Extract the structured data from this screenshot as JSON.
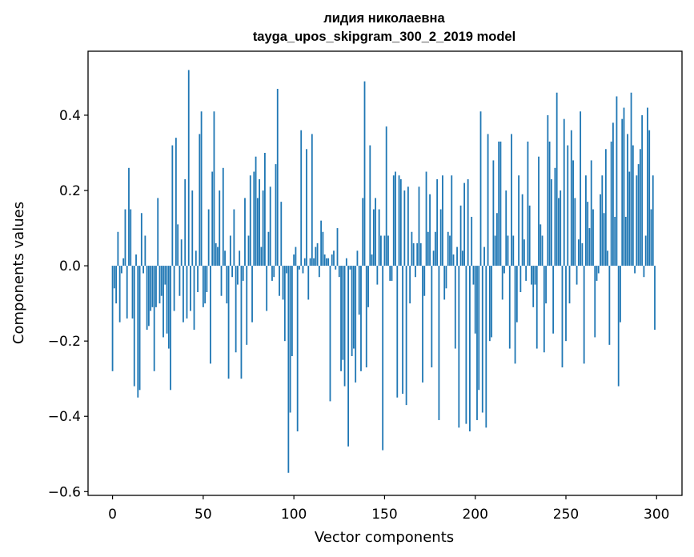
{
  "chart_data": {
    "type": "bar",
    "title": "лидия николаевна",
    "subtitle": "tayga_upos_skipgram_300_2_2019 model",
    "xlabel": "Vector components",
    "ylabel": "Components values",
    "xlim": [
      -13.5,
      314
    ],
    "ylim": [
      -0.61,
      0.57
    ],
    "xticks": [
      0,
      50,
      100,
      150,
      200,
      250,
      300
    ],
    "xtick_labels": [
      "0",
      "50",
      "100",
      "150",
      "200",
      "250",
      "300"
    ],
    "yticks": [
      -0.6,
      -0.4,
      -0.2,
      0.0,
      0.2,
      0.4
    ],
    "ytick_labels": [
      "−0.6",
      "−0.4",
      "−0.2",
      "0.0",
      "0.2",
      "0.4"
    ],
    "grid": false,
    "color": "#1f77b4",
    "x": [
      0,
      1,
      2,
      3,
      4,
      5,
      6,
      7,
      8,
      9,
      10,
      11,
      12,
      13,
      14,
      15,
      16,
      17,
      18,
      19,
      20,
      21,
      22,
      23,
      24,
      25,
      26,
      27,
      28,
      29,
      30,
      31,
      32,
      33,
      34,
      35,
      36,
      37,
      38,
      39,
      40,
      41,
      42,
      43,
      44,
      45,
      46,
      47,
      48,
      49,
      50,
      51,
      52,
      53,
      54,
      55,
      56,
      57,
      58,
      59,
      60,
      61,
      62,
      63,
      64,
      65,
      66,
      67,
      68,
      69,
      70,
      71,
      72,
      73,
      74,
      75,
      76,
      77,
      78,
      79,
      80,
      81,
      82,
      83,
      84,
      85,
      86,
      87,
      88,
      89,
      90,
      91,
      92,
      93,
      94,
      95,
      96,
      97,
      98,
      99,
      100,
      101,
      102,
      103,
      104,
      105,
      106,
      107,
      108,
      109,
      110,
      111,
      112,
      113,
      114,
      115,
      116,
      117,
      118,
      119,
      120,
      121,
      122,
      123,
      124,
      125,
      126,
      127,
      128,
      129,
      130,
      131,
      132,
      133,
      134,
      135,
      136,
      137,
      138,
      139,
      140,
      141,
      142,
      143,
      144,
      145,
      146,
      147,
      148,
      149,
      150,
      151,
      152,
      153,
      154,
      155,
      156,
      157,
      158,
      159,
      160,
      161,
      162,
      163,
      164,
      165,
      166,
      167,
      168,
      169,
      170,
      171,
      172,
      173,
      174,
      175,
      176,
      177,
      178,
      179,
      180,
      181,
      182,
      183,
      184,
      185,
      186,
      187,
      188,
      189,
      190,
      191,
      192,
      193,
      194,
      195,
      196,
      197,
      198,
      199,
      200,
      201,
      202,
      203,
      204,
      205,
      206,
      207,
      208,
      209,
      210,
      211,
      212,
      213,
      214,
      215,
      216,
      217,
      218,
      219,
      220,
      221,
      222,
      223,
      224,
      225,
      226,
      227,
      228,
      229,
      230,
      231,
      232,
      233,
      234,
      235,
      236,
      237,
      238,
      239,
      240,
      241,
      242,
      243,
      244,
      245,
      246,
      247,
      248,
      249,
      250,
      251,
      252,
      253,
      254,
      255,
      256,
      257,
      258,
      259,
      260,
      261,
      262,
      263,
      264,
      265,
      266,
      267,
      268,
      269,
      270,
      271,
      272,
      273,
      274,
      275,
      276,
      277,
      278,
      279,
      280,
      281,
      282,
      283,
      284,
      285,
      286,
      287,
      288,
      289,
      290,
      291,
      292,
      293,
      294,
      295,
      296,
      297,
      298,
      299
    ],
    "values": [
      -0.28,
      -0.06,
      -0.1,
      0.09,
      -0.15,
      -0.02,
      0.02,
      0.15,
      -0.14,
      0.26,
      0.15,
      -0.14,
      -0.32,
      0.03,
      -0.35,
      -0.33,
      0.14,
      -0.02,
      0.08,
      -0.17,
      -0.16,
      -0.12,
      -0.11,
      -0.28,
      -0.11,
      0.18,
      -0.1,
      -0.08,
      -0.19,
      -0.05,
      -0.18,
      -0.22,
      -0.33,
      0.32,
      -0.12,
      0.34,
      0.11,
      -0.08,
      0.07,
      -0.15,
      0.23,
      -0.14,
      0.52,
      -0.12,
      0.2,
      -0.17,
      0.04,
      -0.07,
      0.35,
      0.41,
      -0.11,
      -0.1,
      -0.07,
      0.15,
      -0.26,
      0.25,
      0.41,
      0.06,
      0.05,
      0.2,
      -0.08,
      0.26,
      0.04,
      -0.1,
      -0.3,
      0.08,
      -0.03,
      0.15,
      -0.23,
      -0.05,
      0.04,
      -0.3,
      -0.04,
      0.18,
      -0.21,
      0.08,
      0.24,
      -0.15,
      0.25,
      0.29,
      0.18,
      0.23,
      0.05,
      0.2,
      0.3,
      -0.12,
      0.09,
      0.21,
      -0.04,
      -0.03,
      0.27,
      0.47,
      -0.08,
      0.17,
      -0.09,
      -0.2,
      -0.02,
      -0.55,
      -0.39,
      -0.24,
      0.03,
      0.05,
      -0.44,
      -0.01,
      0.36,
      -0.02,
      0.02,
      0.31,
      -0.09,
      0.02,
      0.35,
      0.02,
      0.05,
      0.06,
      -0.03,
      0.12,
      0.09,
      0.03,
      0.02,
      0.02,
      -0.36,
      0.03,
      0.04,
      -0.01,
      0.1,
      -0.03,
      -0.28,
      -0.25,
      -0.32,
      0.02,
      -0.48,
      -0.01,
      -0.24,
      -0.22,
      -0.31,
      0.04,
      -0.13,
      -0.28,
      0.18,
      0.49,
      -0.27,
      -0.11,
      0.32,
      0.03,
      0.15,
      0.18,
      -0.05,
      0.15,
      0.08,
      -0.49,
      0.08,
      0.37,
      0.08,
      -0.04,
      -0.04,
      0.24,
      0.25,
      -0.35,
      0.24,
      0.23,
      -0.34,
      0.2,
      -0.37,
      0.21,
      -0.1,
      0.09,
      0.06,
      -0.03,
      0.06,
      0.21,
      0.06,
      -0.31,
      -0.08,
      0.25,
      0.09,
      0.19,
      -0.27,
      0.04,
      0.09,
      0.23,
      -0.41,
      0.15,
      0.24,
      -0.09,
      -0.06,
      0.09,
      0.08,
      0.24,
      0.03,
      -0.22,
      0.05,
      -0.43,
      0.16,
      0.04,
      0.22,
      -0.42,
      0.23,
      -0.44,
      0.13,
      -0.05,
      -0.18,
      -0.41,
      -0.33,
      0.41,
      -0.39,
      0.05,
      -0.43,
      0.35,
      -0.2,
      -0.19,
      0.28,
      0.08,
      0.14,
      0.33,
      0.33,
      -0.09,
      -0.02,
      0.2,
      0.08,
      -0.22,
      0.35,
      0.08,
      -0.26,
      -0.15,
      0.24,
      -0.07,
      0.19,
      0.07,
      -0.04,
      0.33,
      0.16,
      -0.05,
      -0.11,
      -0.05,
      -0.22,
      0.29,
      0.11,
      0.08,
      -0.23,
      -0.1,
      0.4,
      0.33,
      0.23,
      -0.18,
      0.26,
      0.46,
      0.18,
      0.2,
      -0.27,
      0.39,
      -0.2,
      0.32,
      -0.1,
      0.36,
      0.28,
      0.18,
      -0.05,
      0.07,
      0.41,
      0.06,
      -0.26,
      0.24,
      0.17,
      0.1,
      0.28,
      0.15,
      -0.19,
      -0.04,
      -0.02,
      0.19,
      0.24,
      0.14,
      0.31,
      0.04,
      -0.21,
      0.33,
      0.38,
      0.13,
      0.45,
      -0.32,
      -0.15,
      0.39,
      0.42,
      0.13,
      0.35,
      0.25,
      0.46,
      0.32,
      -0.02,
      0.24,
      0.27,
      0.31,
      0.4,
      -0.03,
      0.08,
      0.42,
      0.36,
      0.15,
      0.24,
      -0.17
    ]
  }
}
